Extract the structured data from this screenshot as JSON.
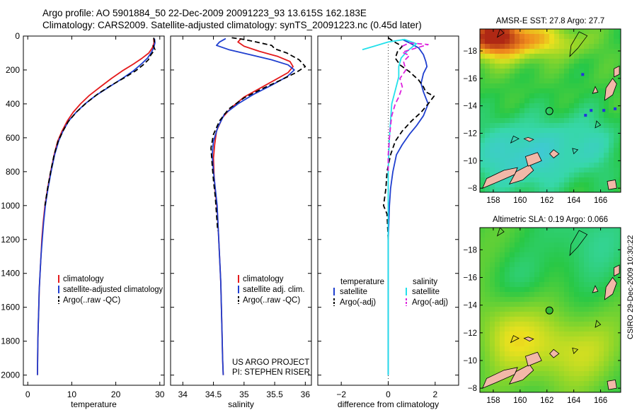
{
  "header": {
    "line1": "Argo profile: AO 5901884_50 22-Dec-2009 20091223_93 13.615S 162.183E",
    "line2": "Climatology: CARS2009. Satellite-adjusted climatology: synTS_20091223.nc (0.45d later)"
  },
  "colors": {
    "red": "#e41a1c",
    "blue": "#1f3fcf",
    "black": "#000000",
    "cyan": "#22e0ea",
    "magenta": "#dd22dd"
  },
  "watermark": "CSIRO 29-Dec-2009 10:30:22",
  "annotation": {
    "line1": "US ARGO PROJECT",
    "line2": "PI: STEPHEN RISER"
  },
  "chart_data": [
    {
      "id": "temperature",
      "type": "line",
      "xlabel": "temperature",
      "xlim": [
        -1,
        31
      ],
      "ylim": [
        0,
        2060
      ],
      "xticks": [
        0,
        10,
        20,
        30
      ],
      "yticks": [
        0,
        200,
        400,
        600,
        800,
        1000,
        1200,
        1400,
        1600,
        1800,
        2000
      ],
      "legend": [
        "climatology",
        "satellite-adjusted climatology",
        "Argo(..raw -QC)"
      ],
      "series": [
        {
          "name": "climatology",
          "color": "red",
          "style": "solid",
          "points": [
            [
              28.6,
              15
            ],
            [
              28.7,
              40
            ],
            [
              28.3,
              70
            ],
            [
              27.5,
              100
            ],
            [
              26,
              130
            ],
            [
              24,
              165
            ],
            [
              21.5,
              205
            ],
            [
              19,
              250
            ],
            [
              16.5,
              300
            ],
            [
              14,
              350
            ],
            [
              12,
              400
            ],
            [
              10.3,
              450
            ],
            [
              9,
              500
            ],
            [
              7.8,
              560
            ],
            [
              6.8,
              620
            ],
            [
              6,
              700
            ],
            [
              5.2,
              800
            ],
            [
              4.5,
              900
            ],
            [
              3.9,
              1000
            ],
            [
              3.5,
              1100
            ],
            [
              3.2,
              1200
            ],
            [
              3,
              1300
            ],
            [
              2.8,
              1400
            ],
            [
              2.6,
              1500
            ],
            [
              2.5,
              1600
            ],
            [
              2.4,
              1700
            ],
            [
              2.3,
              1800
            ],
            [
              2.25,
              1900
            ],
            [
              2.2,
              2000
            ]
          ]
        },
        {
          "name": "satellite-adjusted climatology",
          "color": "blue",
          "style": "solid",
          "points": [
            [
              28.8,
              15
            ],
            [
              28.9,
              40
            ],
            [
              28.6,
              70
            ],
            [
              28,
              100
            ],
            [
              27.2,
              130
            ],
            [
              25.8,
              165
            ],
            [
              24,
              205
            ],
            [
              21.5,
              250
            ],
            [
              18.5,
              300
            ],
            [
              15.5,
              350
            ],
            [
              13,
              400
            ],
            [
              11,
              450
            ],
            [
              9.3,
              500
            ],
            [
              8,
              560
            ],
            [
              7,
              620
            ],
            [
              6.1,
              700
            ],
            [
              5.3,
              800
            ],
            [
              4.6,
              900
            ],
            [
              4,
              1000
            ],
            [
              3.6,
              1100
            ],
            [
              3.3,
              1200
            ],
            [
              3,
              1300
            ],
            [
              2.8,
              1400
            ],
            [
              2.6,
              1500
            ],
            [
              2.5,
              1600
            ],
            [
              2.4,
              1700
            ],
            [
              2.3,
              1800
            ],
            [
              2.25,
              1900
            ],
            [
              2.2,
              2000
            ]
          ]
        },
        {
          "name": "Argo(..raw -QC)",
          "color": "black",
          "style": "dashed",
          "points": [
            [
              28.6,
              10
            ],
            [
              28.8,
              30
            ],
            [
              28.5,
              55
            ],
            [
              28.9,
              80
            ],
            [
              28,
              110
            ],
            [
              27.4,
              140
            ],
            [
              26.2,
              170
            ],
            [
              24.5,
              205
            ],
            [
              22,
              245
            ],
            [
              19,
              290
            ],
            [
              16,
              340
            ],
            [
              13.3,
              395
            ],
            [
              11,
              450
            ],
            [
              9.2,
              505
            ],
            [
              8,
              560
            ],
            [
              6.9,
              620
            ],
            [
              6,
              700
            ],
            [
              5.2,
              800
            ],
            [
              4.5,
              900
            ],
            [
              3.9,
              1000
            ]
          ]
        }
      ]
    },
    {
      "id": "salinity",
      "type": "line",
      "xlabel": "salinity",
      "xlim": [
        33.8,
        36.1
      ],
      "ylim": [
        0,
        2060
      ],
      "xticks": [
        34,
        34.5,
        35,
        35.5,
        36
      ],
      "yticks": [
        0,
        200,
        400,
        600,
        800,
        1000,
        1200,
        1400,
        1600,
        1800,
        2000
      ],
      "legend": [
        "climatology",
        "satellite adj. clim.",
        "Argo(..raw -QC)"
      ],
      "series": [
        {
          "name": "climatology",
          "color": "red",
          "style": "solid",
          "points": [
            [
              34.95,
              15
            ],
            [
              34.9,
              35
            ],
            [
              35,
              60
            ],
            [
              35.25,
              90
            ],
            [
              35.55,
              120
            ],
            [
              35.75,
              150
            ],
            [
              35.8,
              180
            ],
            [
              35.72,
              215
            ],
            [
              35.5,
              260
            ],
            [
              35.25,
              310
            ],
            [
              35,
              360
            ],
            [
              34.8,
              420
            ],
            [
              34.65,
              480
            ],
            [
              34.55,
              560
            ],
            [
              34.52,
              640
            ],
            [
              34.5,
              720
            ],
            [
              34.51,
              820
            ],
            [
              34.53,
              920
            ],
            [
              34.56,
              1020
            ],
            [
              34.58,
              1150
            ],
            [
              34.6,
              1300
            ],
            [
              34.62,
              1450
            ],
            [
              34.63,
              1600
            ],
            [
              34.64,
              1750
            ],
            [
              34.65,
              1900
            ],
            [
              34.66,
              2000
            ]
          ]
        },
        {
          "name": "satellite adj. clim.",
          "color": "blue",
          "style": "solid",
          "points": [
            [
              34.7,
              15
            ],
            [
              34.6,
              35
            ],
            [
              34.55,
              55
            ],
            [
              34.75,
              80
            ],
            [
              35.1,
              110
            ],
            [
              35.45,
              140
            ],
            [
              35.72,
              170
            ],
            [
              35.82,
              200
            ],
            [
              35.7,
              240
            ],
            [
              35.45,
              290
            ],
            [
              35.15,
              345
            ],
            [
              34.9,
              400
            ],
            [
              34.68,
              460
            ],
            [
              34.57,
              540
            ],
            [
              34.5,
              620
            ],
            [
              34.48,
              700
            ],
            [
              34.5,
              800
            ],
            [
              34.53,
              900
            ],
            [
              34.56,
              1000
            ],
            [
              34.58,
              1150
            ],
            [
              34.6,
              1300
            ],
            [
              34.62,
              1450
            ],
            [
              34.63,
              1600
            ],
            [
              34.64,
              1750
            ],
            [
              34.65,
              1900
            ],
            [
              34.66,
              2000
            ]
          ]
        },
        {
          "name": "Argo(..raw -QC)",
          "color": "black",
          "style": "dashed",
          "points": [
            [
              34.8,
              10
            ],
            [
              35,
              20
            ],
            [
              35.2,
              35
            ],
            [
              35.45,
              55
            ],
            [
              35.5,
              75
            ],
            [
              35.7,
              100
            ],
            [
              35.9,
              140
            ],
            [
              36,
              180
            ],
            [
              35.85,
              215
            ],
            [
              35.6,
              260
            ],
            [
              35.3,
              310
            ],
            [
              35,
              365
            ],
            [
              34.75,
              430
            ],
            [
              34.6,
              500
            ],
            [
              34.5,
              580
            ],
            [
              34.46,
              660
            ],
            [
              34.48,
              760
            ],
            [
              34.5,
              850
            ],
            [
              34.53,
              950
            ],
            [
              34.55,
              1050
            ],
            [
              34.57,
              1150
            ]
          ]
        }
      ]
    },
    {
      "id": "difference",
      "type": "line",
      "xlabel": "difference from climatology",
      "xlim": [
        -3,
        3
      ],
      "ylim": [
        0,
        2060
      ],
      "xticks": [
        -2,
        0,
        2
      ],
      "yticks": [
        0,
        200,
        400,
        600,
        800,
        1000,
        1200,
        1400,
        1600,
        1800,
        2000
      ],
      "zero_line": true,
      "legend_left_title": "temperature",
      "legend_right_title": "salinity",
      "legend": [
        "satellite",
        "Argo(-adj)",
        "satellite",
        "Argo(-adj)"
      ],
      "series": [
        {
          "name": "temperature satellite",
          "color": "blue",
          "style": "solid",
          "points": [
            [
              0.6,
              20
            ],
            [
              0.9,
              40
            ],
            [
              1.3,
              70
            ],
            [
              1.5,
              110
            ],
            [
              1.6,
              150
            ],
            [
              1.65,
              180
            ],
            [
              1.5,
              220
            ],
            [
              1.4,
              280
            ],
            [
              1.5,
              330
            ],
            [
              1.7,
              400
            ],
            [
              1.5,
              470
            ],
            [
              1.2,
              530
            ],
            [
              0.9,
              580
            ],
            [
              0.6,
              640
            ],
            [
              0.35,
              700
            ],
            [
              0.2,
              800
            ],
            [
              0.1,
              900
            ],
            [
              0.05,
              1000
            ],
            [
              0,
              1200
            ],
            [
              0,
              1500
            ],
            [
              0,
              2000
            ]
          ]
        },
        {
          "name": "temperature Argo(-adj)",
          "color": "black",
          "style": "dashed",
          "points": [
            [
              0,
              10
            ],
            [
              0.2,
              30
            ],
            [
              0.6,
              60
            ],
            [
              0.4,
              90
            ],
            [
              0.3,
              130
            ],
            [
              0.5,
              170
            ],
            [
              0.9,
              210
            ],
            [
              1.3,
              260
            ],
            [
              1.5,
              300
            ],
            [
              1.6,
              330
            ],
            [
              1.95,
              355
            ],
            [
              1.7,
              400
            ],
            [
              1.4,
              450
            ],
            [
              1,
              500
            ],
            [
              0.6,
              560
            ],
            [
              0.3,
              620
            ],
            [
              0.1,
              700
            ],
            [
              -0.05,
              800
            ],
            [
              -0.1,
              900
            ],
            [
              -0.2,
              1000
            ],
            [
              -0.05,
              1050
            ],
            [
              0,
              1200
            ]
          ]
        },
        {
          "name": "salinity satellite",
          "color": "cyan",
          "style": "solid",
          "points": [
            [
              -1.1,
              80
            ],
            [
              -0.6,
              60
            ],
            [
              0,
              35
            ],
            [
              0.7,
              20
            ],
            [
              1.2,
              45
            ],
            [
              0.8,
              90
            ],
            [
              0.55,
              130
            ],
            [
              0.45,
              180
            ],
            [
              0.45,
              240
            ],
            [
              0.3,
              320
            ],
            [
              0.15,
              400
            ],
            [
              0.1,
              500
            ],
            [
              0.05,
              600
            ],
            [
              0.02,
              700
            ],
            [
              0,
              800
            ],
            [
              0,
              1000
            ],
            [
              0,
              1300
            ],
            [
              0,
              1600
            ],
            [
              0,
              2000
            ]
          ]
        },
        {
          "name": "salinity Argo(-adj)",
          "color": "magenta",
          "style": "dashed",
          "points": [
            [
              0.6,
              60
            ],
            [
              0.9,
              40
            ],
            [
              1.7,
              50
            ],
            [
              1.2,
              70
            ],
            [
              0.6,
              95
            ],
            [
              0.9,
              115
            ],
            [
              0.65,
              150
            ],
            [
              0.75,
              200
            ],
            [
              0.5,
              250
            ],
            [
              0.6,
              300
            ],
            [
              0.45,
              360
            ],
            [
              0.3,
              400
            ],
            [
              0.15,
              470
            ],
            [
              0.1,
              530
            ],
            [
              0.05,
              600
            ],
            [
              0,
              700
            ],
            [
              0,
              800
            ]
          ]
        }
      ]
    }
  ],
  "maps": [
    {
      "title": "AMSR-E SST: 27.8 Argo: 27.7",
      "xticks": [
        "158",
        "160",
        "162",
        "164",
        "166"
      ],
      "yticks": [
        "-8",
        "-10",
        "-12",
        "-14",
        "-16",
        "-18"
      ],
      "argo_marker": "circle"
    },
    {
      "title": "Altimetric SLA: 0.19 Argo: 0.066",
      "xticks": [
        "158",
        "160",
        "162",
        "164",
        "166"
      ],
      "yticks": [
        "-8",
        "-10",
        "-12",
        "-14",
        "-16",
        "-18"
      ],
      "argo_marker": "filled-circle"
    }
  ]
}
